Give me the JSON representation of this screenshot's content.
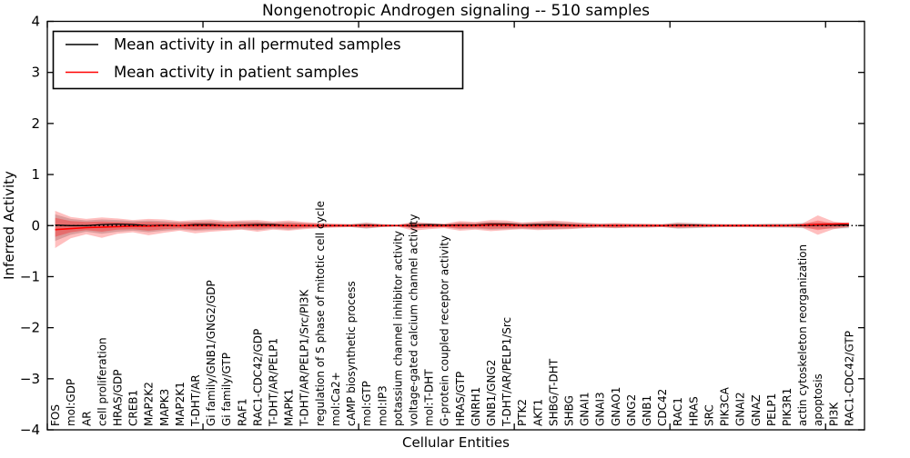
{
  "figure": {
    "title": "Nongenotropic Androgen signaling -- 510 samples",
    "xlabel": "Cellular Entities",
    "ylabel": "Inferred Activity",
    "legend": [
      {
        "label": "Mean activity in all permuted samples",
        "color": "#000000"
      },
      {
        "label": "Mean activity in patient samples",
        "color": "#ff0000"
      }
    ]
  },
  "chart_data": {
    "type": "line",
    "title": "Nongenotropic Androgen signaling -- 510 samples",
    "xlabel": "Cellular Entities",
    "ylabel": "Inferred Activity",
    "ylim": [
      -4,
      4
    ],
    "yticks": {
      "values": [
        4,
        3,
        2,
        1,
        0,
        -1,
        -2,
        -3,
        -4
      ],
      "labels": [
        "4",
        "3",
        "2",
        "1",
        "0",
        "−1",
        "−2",
        "−3",
        "−4"
      ]
    },
    "x_axis_range": [
      0,
      52.5
    ],
    "x_major_ticks": [
      0,
      10,
      20,
      30,
      40,
      50
    ],
    "grid": false,
    "zero_line": {
      "show": true,
      "style": "dotted",
      "color": "#000000",
      "y": 0
    },
    "legend_position": "upper left",
    "categories": [
      "FOS",
      "mol:GDP",
      "AR",
      "cell proliferation",
      "HRAS/GDP",
      "CREB1",
      "MAP2K2",
      "MAPK3",
      "MAP2K1",
      "T-DHT/AR",
      "Gi family/GNB1/GNG2/GDP",
      "Gi family/GTP",
      "RAF1",
      "RAC1-CDC42/GDP",
      "T-DHT/AR/PELP1",
      "MAPK1",
      "T-DHT/AR/PELP1/Src/PI3K",
      "regulation of S phase of mitotic cell cycle",
      "mol:Ca2+",
      "cAMP biosynthetic process",
      "mol:GTP",
      "mol:IP3",
      "potassium channel inhibitor activity",
      "voltage-gated calcium channel activity",
      "mol:T-DHT",
      "G-protein coupled receptor activity",
      "HRAS/GTP",
      "GNRH1",
      "GNB1/GNG2",
      "T-DHT/AR/PELP1/Src",
      "PTK2",
      "AKT1",
      "SHBG/T-DHT",
      "SHBG",
      "GNAI1",
      "GNAI3",
      "GNAO1",
      "GNG2",
      "GNB1",
      "CDC42",
      "RAC1",
      "HRAS",
      "SRC",
      "PIK3CA",
      "GNAI2",
      "GNAZ",
      "PELP1",
      "PIK3R1",
      "actin cytoskeleton reorganization",
      "apoptosis",
      "PI3K",
      "RAC1-CDC42/GTP"
    ],
    "series": [
      {
        "name": "Mean activity in all permuted samples",
        "color": "#000000",
        "values": [
          0.01,
          0,
          0,
          0.02,
          0.03,
          0.02,
          0,
          0.01,
          0,
          0.02,
          0.02,
          0,
          0.01,
          0.02,
          0.02,
          0,
          0,
          0,
          0,
          0,
          0.01,
          0,
          0,
          0.01,
          0.02,
          0.01,
          0.01,
          0.01,
          0.03,
          0.03,
          0.01,
          0.02,
          0.02,
          0.01,
          0,
          0,
          0,
          0,
          0,
          0,
          0.01,
          0.01,
          0,
          0,
          0,
          0,
          0,
          0,
          0,
          0.01,
          0.01,
          0.01
        ]
      },
      {
        "name": "Mean activity in patient samples",
        "color": "#ff0000",
        "values": [
          -0.08,
          -0.06,
          -0.04,
          -0.03,
          -0.02,
          -0.01,
          -0.01,
          0,
          0,
          0,
          0,
          0,
          0,
          0,
          0,
          0,
          0,
          0,
          0,
          0,
          0,
          0,
          0,
          0,
          0,
          0,
          0,
          0,
          0.01,
          0.01,
          0,
          0,
          0,
          0,
          0,
          0,
          0,
          0,
          0,
          0,
          0,
          0,
          0,
          0,
          0,
          0,
          0,
          0,
          0.01,
          0.02,
          0.03,
          0.04
        ]
      }
    ],
    "bands": [
      {
        "name": "permuted samples std band",
        "color": "#999999",
        "opacity": 0.45,
        "upper": [
          0.22,
          0.13,
          0.1,
          0.12,
          0.11,
          0.09,
          0.1,
          0.09,
          0.07,
          0.08,
          0.09,
          0.07,
          0.08,
          0.08,
          0.06,
          0.07,
          0.05,
          0.04,
          0.03,
          0.03,
          0.06,
          0.03,
          0.02,
          0.05,
          0.04,
          0.03,
          0.06,
          0.05,
          0.08,
          0.07,
          0.05,
          0.06,
          0.07,
          0.06,
          0.05,
          0.04,
          0.04,
          0.04,
          0.03,
          0.03,
          0.06,
          0.05,
          0.04,
          0.03,
          0.03,
          0.03,
          0.04,
          0.04,
          0.05,
          0.06,
          0.06,
          0.05
        ],
        "lower": [
          -0.3,
          -0.18,
          -0.12,
          -0.16,
          -0.12,
          -0.1,
          -0.13,
          -0.1,
          -0.08,
          -0.1,
          -0.09,
          -0.08,
          -0.07,
          -0.09,
          -0.06,
          -0.08,
          -0.05,
          -0.04,
          -0.03,
          -0.03,
          -0.06,
          -0.03,
          -0.02,
          -0.05,
          -0.04,
          -0.03,
          -0.07,
          -0.06,
          -0.08,
          -0.07,
          -0.06,
          -0.07,
          -0.07,
          -0.06,
          -0.05,
          -0.04,
          -0.05,
          -0.04,
          -0.04,
          -0.03,
          -0.06,
          -0.05,
          -0.04,
          -0.03,
          -0.03,
          -0.03,
          -0.04,
          -0.04,
          -0.05,
          -0.06,
          -0.06,
          -0.05
        ]
      },
      {
        "name": "patient samples std band (outer)",
        "color": "#ff0000",
        "opacity": 0.25,
        "upper": [
          0.29,
          0.17,
          0.13,
          0.16,
          0.14,
          0.11,
          0.13,
          0.12,
          0.09,
          0.11,
          0.12,
          0.09,
          0.1,
          0.11,
          0.08,
          0.1,
          0.07,
          0.05,
          0.04,
          0.03,
          0.05,
          0.03,
          0.02,
          0.07,
          0.05,
          0.04,
          0.09,
          0.07,
          0.11,
          0.1,
          0.06,
          0.08,
          0.1,
          0.08,
          0.05,
          0.04,
          0.05,
          0.04,
          0.04,
          0.03,
          0.05,
          0.04,
          0.03,
          0.03,
          0.03,
          0.03,
          0.03,
          0.03,
          0.04,
          0.2,
          0.08,
          0.04
        ],
        "lower": [
          -0.44,
          -0.25,
          -0.17,
          -0.24,
          -0.16,
          -0.13,
          -0.19,
          -0.14,
          -0.1,
          -0.15,
          -0.12,
          -0.1,
          -0.08,
          -0.12,
          -0.08,
          -0.1,
          -0.07,
          -0.05,
          -0.04,
          -0.03,
          -0.05,
          -0.03,
          -0.02,
          -0.1,
          -0.07,
          -0.05,
          -0.1,
          -0.08,
          -0.11,
          -0.09,
          -0.07,
          -0.09,
          -0.08,
          -0.07,
          -0.05,
          -0.04,
          -0.05,
          -0.04,
          -0.04,
          -0.03,
          -0.05,
          -0.04,
          -0.03,
          -0.03,
          -0.03,
          -0.03,
          -0.03,
          -0.03,
          -0.04,
          -0.18,
          -0.07,
          -0.03
        ]
      },
      {
        "name": "patient samples std band (inner)",
        "color": "#ff0000",
        "opacity": 0.3,
        "upper": [
          0.15,
          0.09,
          0.07,
          0.08,
          0.07,
          0.06,
          0.07,
          0.06,
          0.05,
          0.06,
          0.06,
          0.05,
          0.05,
          0.06,
          0.04,
          0.05,
          0.04,
          0.03,
          0.02,
          0.02,
          0.03,
          0.02,
          0.01,
          0.04,
          0.03,
          0.02,
          0.05,
          0.04,
          0.06,
          0.05,
          0.03,
          0.04,
          0.05,
          0.04,
          0.03,
          0.02,
          0.03,
          0.02,
          0.02,
          0.02,
          0.03,
          0.02,
          0.02,
          0.02,
          0.02,
          0.02,
          0.02,
          0.02,
          0.02,
          0.1,
          0.04,
          0.02
        ],
        "lower": [
          -0.22,
          -0.13,
          -0.09,
          -0.12,
          -0.08,
          -0.07,
          -0.1,
          -0.07,
          -0.05,
          -0.08,
          -0.06,
          -0.05,
          -0.04,
          -0.06,
          -0.04,
          -0.05,
          -0.04,
          -0.03,
          -0.02,
          -0.02,
          -0.03,
          -0.02,
          -0.01,
          -0.05,
          -0.04,
          -0.03,
          -0.05,
          -0.04,
          -0.06,
          -0.05,
          -0.04,
          -0.05,
          -0.04,
          -0.04,
          -0.03,
          -0.02,
          -0.03,
          -0.02,
          -0.02,
          -0.02,
          -0.03,
          -0.02,
          -0.02,
          -0.02,
          -0.02,
          -0.02,
          -0.02,
          -0.02,
          -0.02,
          -0.09,
          -0.04,
          -0.02
        ]
      }
    ]
  }
}
